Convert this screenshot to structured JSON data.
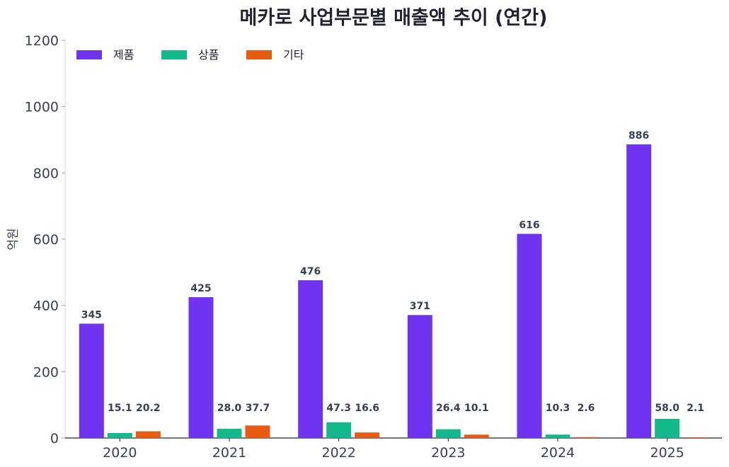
{
  "chart_data": {
    "type": "bar",
    "title": "메카로 사업부문별 매출액 추이 (연간)",
    "ylabel": "억원",
    "xlabel": "",
    "ylim": [
      0,
      1200
    ],
    "yticks": [
      0,
      200,
      400,
      600,
      800,
      1000,
      1200
    ],
    "categories": [
      "2020",
      "2021",
      "2022",
      "2023",
      "2024",
      "2025"
    ],
    "legend_position": "top-left",
    "grid": false,
    "series": [
      {
        "name": "제품",
        "color": "#7033f0",
        "values": [
          345,
          425,
          476,
          371,
          616,
          886
        ],
        "labels": [
          "345",
          "425",
          "476",
          "371",
          "616",
          "886"
        ]
      },
      {
        "name": "상품",
        "color": "#13b98a",
        "values": [
          15.1,
          28.0,
          47.3,
          26.4,
          10.3,
          58.0
        ],
        "labels": [
          "15.1",
          "28.0",
          "47.3",
          "26.4",
          "10.3",
          "58.0"
        ]
      },
      {
        "name": "기타",
        "color": "#e85b10",
        "values": [
          20.2,
          37.7,
          16.6,
          10.1,
          2.6,
          2.1
        ],
        "labels": [
          "20.2",
          "37.7",
          "16.6",
          "10.1",
          "2.6",
          "2.1"
        ]
      }
    ]
  }
}
